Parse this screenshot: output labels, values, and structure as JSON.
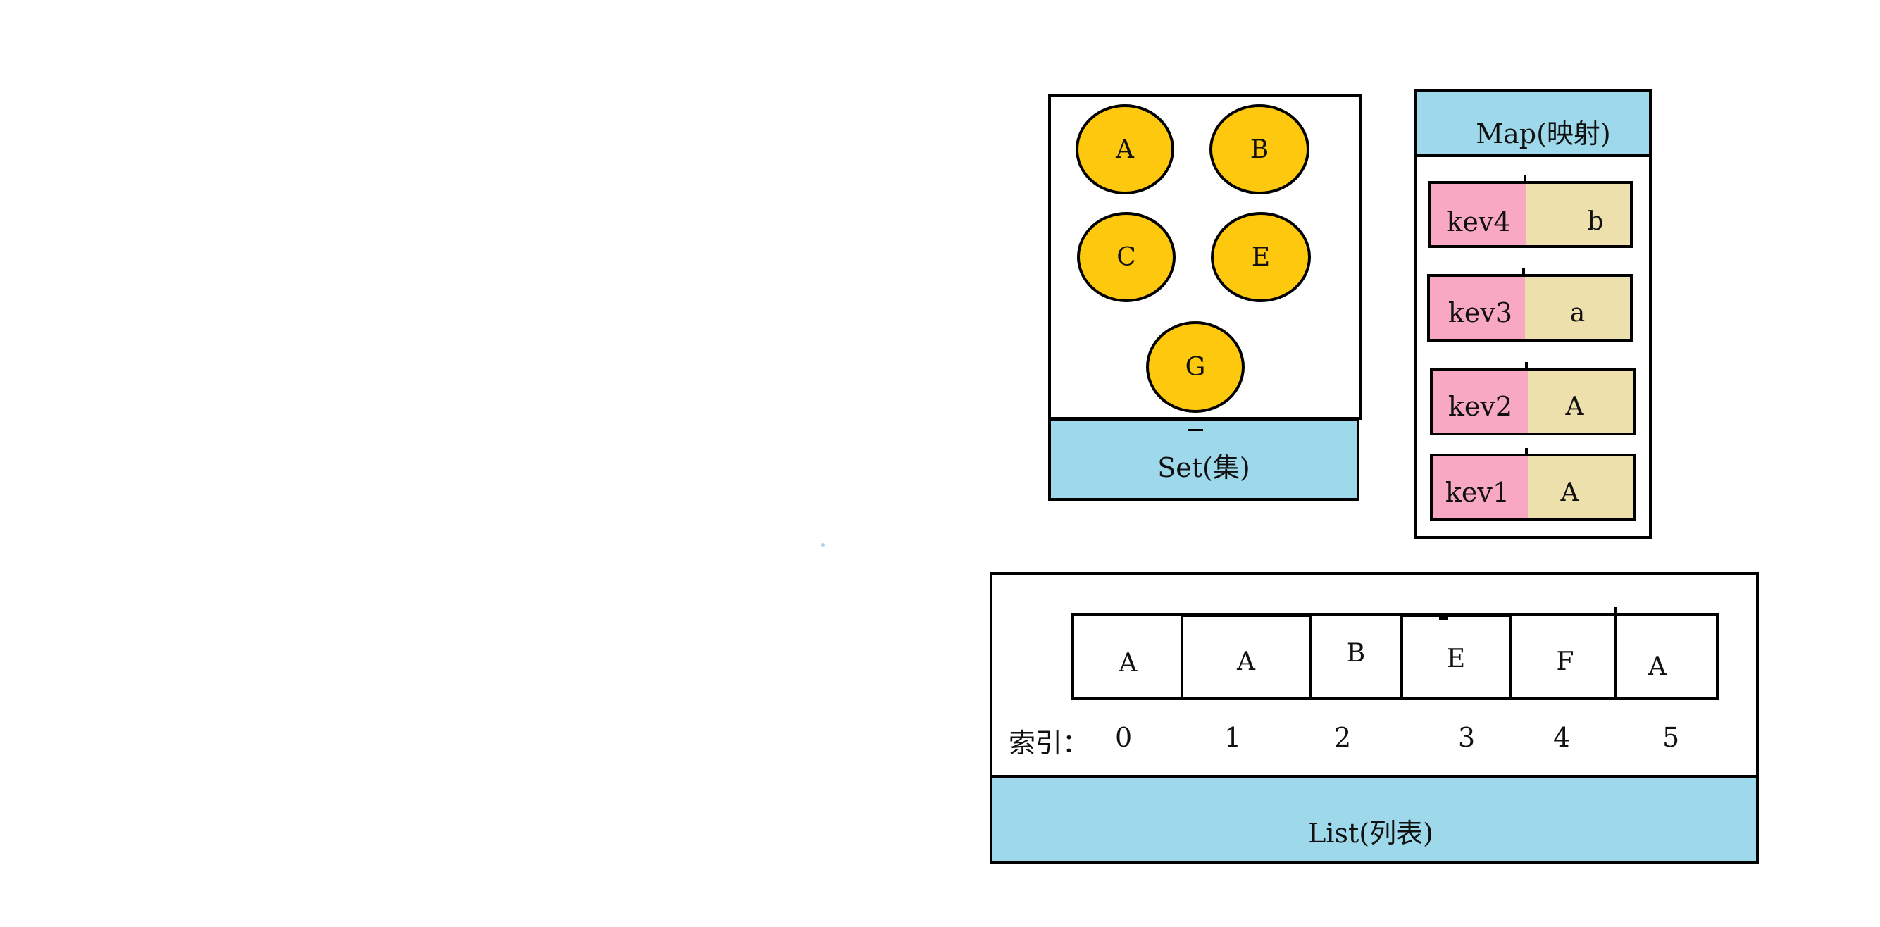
{
  "colors": {
    "header_fill": "#9dd9ea",
    "circle_fill": "#fec80f",
    "key_fill": "#f9a8c4",
    "value_fill": "#ede0ad",
    "stroke": "#000000",
    "dot": "#a9cde9"
  },
  "set": {
    "label": "Set(集)",
    "elements": [
      "A",
      "B",
      "C",
      "E",
      "G"
    ]
  },
  "map": {
    "label": "Map(映射)",
    "entries": [
      {
        "key": "kev4",
        "value": "b"
      },
      {
        "key": "kev3",
        "value": "a"
      },
      {
        "key": "kev2",
        "value": "A"
      },
      {
        "key": "kev1",
        "value": "A"
      }
    ]
  },
  "list": {
    "label": "List(列表)",
    "index_label": "索引：",
    "elements": [
      "A",
      "A",
      "B",
      "E",
      "F",
      "A"
    ],
    "indices": [
      "0",
      "1",
      "2",
      "3",
      "4",
      "5"
    ]
  }
}
